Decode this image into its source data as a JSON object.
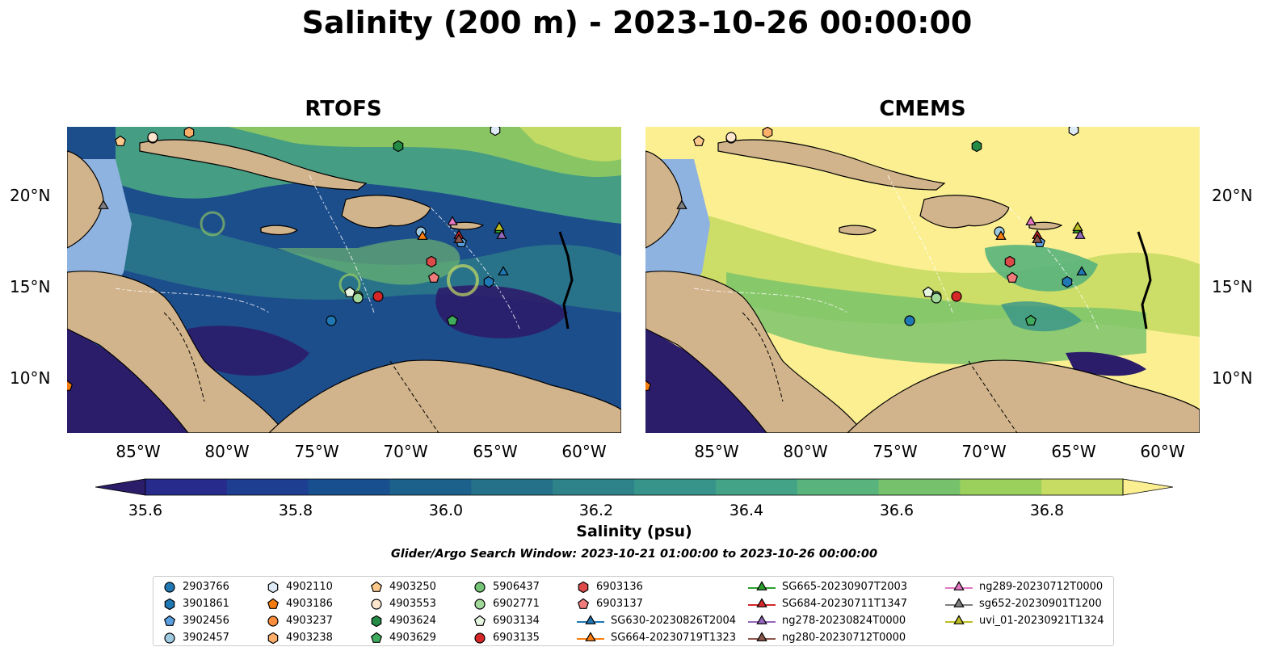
{
  "title": "Salinity (200 m) - 2023-10-26 00:00:00",
  "panels": [
    {
      "name": "RTOFS"
    },
    {
      "name": "CMEMS"
    }
  ],
  "lat_labels": [
    "20°N",
    "15°N",
    "10°N"
  ],
  "lon_labels": [
    "85°W",
    "80°W",
    "75°W",
    "70°W",
    "65°W",
    "60°W"
  ],
  "colorbar": {
    "label": "Salinity (psu)",
    "ticks": [
      "35.6",
      "35.8",
      "36.0",
      "36.2",
      "36.4",
      "36.6",
      "36.8"
    ],
    "min": 35.5,
    "max": 36.9,
    "colors": [
      "#2c1d6a",
      "#272c8c",
      "#1d3e91",
      "#18508f",
      "#1b618c",
      "#25718a",
      "#2e8289",
      "#36948a",
      "#43a386",
      "#58b37c",
      "#76c26c",
      "#9bd05c",
      "#c6dc63",
      "#fbef92"
    ]
  },
  "search_window": "Glider/Argo Search Window: 2023-10-21 01:00:00 to 2023-10-26 00:00:00",
  "legend": [
    {
      "label": "2903766",
      "marker": "circle",
      "color": "#1f77b4"
    },
    {
      "label": "3901861",
      "marker": "hexagon",
      "color": "#1f77b4"
    },
    {
      "label": "3902456",
      "marker": "pentagon",
      "color": "#5aa0e0"
    },
    {
      "label": "3902457",
      "marker": "circle",
      "color": "#9ecae1"
    },
    {
      "label": "4902110",
      "marker": "hexagon",
      "color": "#deebf7"
    },
    {
      "label": "4903186",
      "marker": "pentagon",
      "color": "#f47b0e"
    },
    {
      "label": "4903237",
      "marker": "circle",
      "color": "#fd8d3c"
    },
    {
      "label": "4903238",
      "marker": "hexagon",
      "color": "#fdae6b"
    },
    {
      "label": "4903250",
      "marker": "pentagon",
      "color": "#fdc98a"
    },
    {
      "label": "4903553",
      "marker": "circle",
      "color": "#fee6ce"
    },
    {
      "label": "4903624",
      "marker": "hexagon",
      "color": "#238b45"
    },
    {
      "label": "4903629",
      "marker": "pentagon",
      "color": "#41ab5d"
    },
    {
      "label": "5906437",
      "marker": "circle",
      "color": "#74c476"
    },
    {
      "label": "6902771",
      "marker": "circle",
      "color": "#a1d99b"
    },
    {
      "label": "6903134",
      "marker": "pentagon",
      "color": "#e5f5e0"
    },
    {
      "label": "6903135",
      "marker": "circle",
      "color": "#d62728"
    },
    {
      "label": "6903136",
      "marker": "hexagon",
      "color": "#de4a4a"
    },
    {
      "label": "6903137",
      "marker": "pentagon",
      "color": "#f07b7b"
    },
    {
      "label": "SG630-20230826T2004",
      "marker": "triangle",
      "color": "#1f77b4"
    },
    {
      "label": "SG664-20230719T1323",
      "marker": "triangle",
      "color": "#ff7f0e"
    },
    {
      "label": "SG665-20230907T2003",
      "marker": "triangle",
      "color": "#2ca02c"
    },
    {
      "label": "SG684-20230711T1347",
      "marker": "triangle",
      "color": "#d62728"
    },
    {
      "label": "ng278-20230824T0000",
      "marker": "triangle",
      "color": "#9467bd"
    },
    {
      "label": "ng280-20230712T0000",
      "marker": "triangle",
      "color": "#8c564b"
    },
    {
      "label": "ng289-20230712T0000",
      "marker": "triangle",
      "color": "#e377c2"
    },
    {
      "label": "sg652-20230901T1200",
      "marker": "triangle",
      "color": "#7f7f7f"
    },
    {
      "label": "uvi_01-20230921T1324",
      "marker": "triangle",
      "color": "#bcbd22"
    }
  ]
}
